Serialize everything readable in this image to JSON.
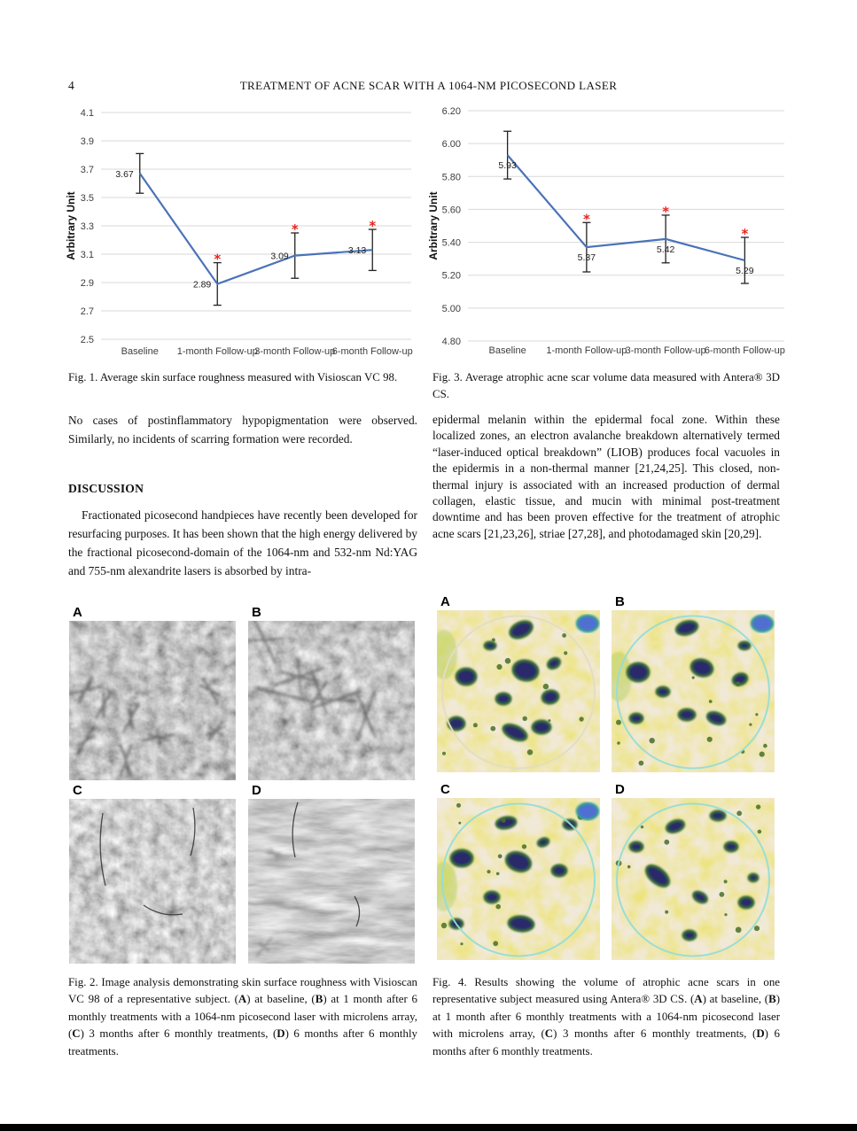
{
  "page": {
    "number": "4",
    "running_title": "TREATMENT OF ACNE SCAR WITH A 1064-NM PICOSECOND LASER"
  },
  "left_column": {
    "fig1_caption": "Fig. 1. Average skin surface roughness measured with Visioscan VC 98.",
    "para1": "No cases of postinflammatory hypopigmentation were observed. Similarly, no incidents of scarring formation were recorded.",
    "discussion_heading": "DISCUSSION",
    "para2": "Fractionated picosecond handpieces have recently been developed for resurfacing purposes. It has been shown that the high energy delivered by the fractional picosecond-domain of the 1064-nm and 532-nm Nd:YAG and 755-nm alexandrite lasers is absorbed by intra-",
    "fig2_caption": "Fig. 2. Image analysis demonstrating skin surface roughness with Visioscan VC 98 of a representative subject. (A) at baseline, (B) at 1 month after 6 monthly treatments with a 1064-nm picosecond laser with microlens array, (C) 3 months after 6 monthly treatments, (D) 6 months after 6 monthly treatments."
  },
  "right_column": {
    "fig3_caption": "Fig. 3. Average atrophic acne scar volume data measured with Antera® 3D CS.",
    "para1": "epidermal melanin within the epidermal focal zone. Within these localized zones, an electron avalanche breakdown alternatively termed “laser-induced optical breakdown” (LIOB) produces focal vacuoles in the epidermis in a non-thermal manner [21,24,25]. This closed, non-thermal injury is associated with an increased production of dermal collagen, elastic tissue, and mucin with minimal post-treatment downtime and has been proven effective for the treatment of atrophic acne scars [21,23,26], striae [27,28], and photodamaged skin [20,29].",
    "fig4_caption": "Fig. 4. Results showing the volume of atrophic acne scars in one representative subject measured using Antera® 3D CS. (A) at baseline, (B) at 1 month after 6 monthly treatments with a 1064-nm picosecond laser with microlens array, (C) 3 months after 6 monthly treatments, (D) 6 months after 6 monthly treatments."
  },
  "fig2_panels": [
    "A",
    "B",
    "C",
    "D"
  ],
  "fig4_panels": [
    "A",
    "B",
    "C",
    "D"
  ],
  "chart_data": [
    {
      "type": "line",
      "figure": "Fig. 1",
      "categories": [
        "Baseline",
        "1-month Follow-up",
        "3-month Follow-up",
        "6-month Follow-up"
      ],
      "values": [
        3.67,
        2.89,
        3.09,
        3.13
      ],
      "errors": [
        0.14,
        0.15,
        0.16,
        0.145
      ],
      "significant": [
        false,
        true,
        true,
        true
      ],
      "xlabel": "",
      "ylabel": "Arbitrary Unit",
      "ylim": [
        2.5,
        4.1
      ],
      "ytick_step": 0.2,
      "ytick_decimals": 1,
      "grid": true,
      "legend": "none",
      "line_color": "#4a73b9",
      "gridline_color": "#d9d9d9",
      "errorbar_color": "#222222",
      "asterisk_color": "#e8251f",
      "value_label_position": "left"
    },
    {
      "type": "line",
      "figure": "Fig. 3",
      "categories": [
        "Baseline",
        "1-month Follow-up",
        "3-month Follow-up",
        "6-month Follow-up"
      ],
      "values": [
        5.93,
        5.37,
        5.42,
        5.29
      ],
      "errors": [
        0.145,
        0.15,
        0.145,
        0.14
      ],
      "significant": [
        false,
        true,
        true,
        true
      ],
      "xlabel": "",
      "ylabel": "Arbitrary Unit",
      "ylim": [
        4.8,
        6.2
      ],
      "ytick_step": 0.2,
      "ytick_decimals": 2,
      "grid": true,
      "legend": "none",
      "line_color": "#4a73b9",
      "gridline_color": "#d9d9d9",
      "errorbar_color": "#222222",
      "asterisk_color": "#e8251f",
      "value_label_position": "below"
    }
  ]
}
